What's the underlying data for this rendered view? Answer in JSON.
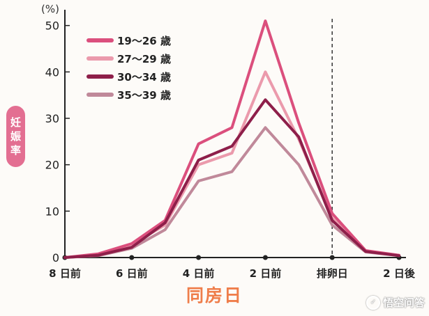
{
  "chart_data": {
    "type": "line",
    "unit_label": "(%)",
    "ylabel": "妊娠率",
    "xlabel": "同房日",
    "ylim": [
      0,
      50
    ],
    "yticks": [
      0,
      10,
      20,
      30,
      40,
      50
    ],
    "x": [
      -8,
      -7,
      -6,
      -5,
      -4,
      -3,
      -2,
      -1,
      0,
      1,
      2
    ],
    "xticks": [
      {
        "x": -8,
        "label": "8 日前"
      },
      {
        "x": -6,
        "label": "6 日前"
      },
      {
        "x": -4,
        "label": "4 日前"
      },
      {
        "x": -2,
        "label": "2 日前"
      },
      {
        "x": 0,
        "label": "排卵日"
      },
      {
        "x": 2,
        "label": "2 日後"
      }
    ],
    "ovulation_line_x": 0,
    "legend_position": "top-left",
    "series": [
      {
        "name": "19〜26 歳",
        "color": "#db4f7d",
        "values": [
          0,
          0.8,
          3,
          8,
          24.5,
          28,
          51,
          29,
          9.5,
          1.5,
          0.5
        ]
      },
      {
        "name": "27〜29 歳",
        "color": "#eb9aac",
        "values": [
          0,
          0.6,
          2.8,
          7,
          20,
          22.5,
          40,
          25.5,
          8.5,
          1.3,
          0.5
        ]
      },
      {
        "name": "30〜34 歳",
        "color": "#8e1f4a",
        "values": [
          0,
          0.5,
          2.2,
          7.5,
          21,
          24,
          34,
          26,
          8,
          1.3,
          0.4
        ]
      },
      {
        "name": "35〜39 歳",
        "color": "#c0899a",
        "values": [
          0,
          0.4,
          2,
          6,
          16.5,
          18.5,
          28,
          20,
          7,
          1.2,
          0.4
        ]
      }
    ]
  },
  "watermark": "悟空问答",
  "watermark_icon": "chat-bubble-icon"
}
